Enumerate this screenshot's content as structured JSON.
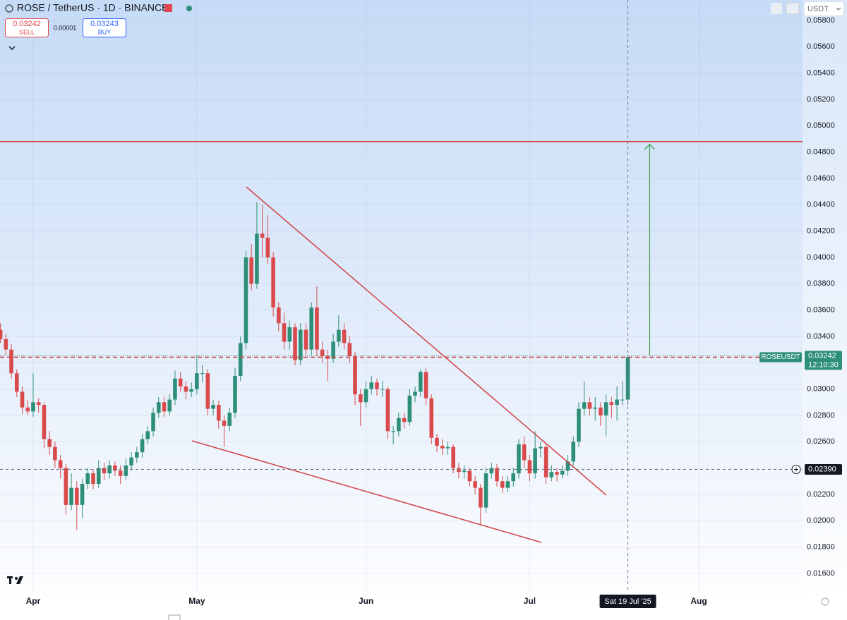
{
  "chart_data": {
    "type": "candlestick",
    "header": {
      "title": "ROSE / TetherUS · 1D · BINANCE",
      "sell_price": "0.03242",
      "sell_label": "SELL",
      "spread": "0.00001",
      "buy_price": "0.03243",
      "buy_label": "BUY",
      "currency": "USDT"
    },
    "up_color": "#2e8f78",
    "down_color": "#d94a4c",
    "ylim": [
      0.01455,
      0.05955
    ],
    "yticks": [
      {
        "value": 0.016,
        "label": "0.01600"
      },
      {
        "value": 0.018,
        "label": "0.01800"
      },
      {
        "value": 0.02,
        "label": "0.02000"
      },
      {
        "value": 0.022,
        "label": "0.02200"
      },
      {
        "value": 0.024,
        "label": "0.02400"
      },
      {
        "value": 0.026,
        "label": "0.02600"
      },
      {
        "value": 0.028,
        "label": "0.02800"
      },
      {
        "value": 0.03,
        "label": "0.03000"
      },
      {
        "value": 0.032,
        "label": "0.03200"
      },
      {
        "value": 0.034,
        "label": "0.03400"
      },
      {
        "value": 0.036,
        "label": "0.03600"
      },
      {
        "value": 0.038,
        "label": "0.03800"
      },
      {
        "value": 0.04,
        "label": "0.04000"
      },
      {
        "value": 0.042,
        "label": "0.04200"
      },
      {
        "value": 0.044,
        "label": "0.04400"
      },
      {
        "value": 0.046,
        "label": "0.04600"
      },
      {
        "value": 0.048,
        "label": "0.04800"
      },
      {
        "value": 0.05,
        "label": "0.05000"
      },
      {
        "value": 0.052,
        "label": "0.05200"
      },
      {
        "value": 0.054,
        "label": "0.05400"
      },
      {
        "value": 0.056,
        "label": "0.05600"
      },
      {
        "value": 0.058,
        "label": "0.05800"
      }
    ],
    "grid": true,
    "categories": [
      null,
      null,
      null,
      null,
      null,
      null,
      "Apr",
      null,
      null,
      null,
      null,
      null,
      null,
      null,
      null,
      null,
      null,
      null,
      null,
      null,
      null,
      null,
      null,
      null,
      null,
      null,
      null,
      null,
      null,
      null,
      null,
      null,
      null,
      null,
      null,
      null,
      "May",
      null,
      null,
      null,
      null,
      null,
      null,
      null,
      null,
      null,
      null,
      null,
      null,
      null,
      null,
      null,
      null,
      null,
      null,
      null,
      null,
      null,
      null,
      null,
      null,
      null,
      null,
      null,
      null,
      null,
      null,
      "Jun",
      null,
      null,
      null,
      null,
      null,
      null,
      null,
      null,
      null,
      null,
      null,
      null,
      null,
      null,
      null,
      null,
      null,
      null,
      null,
      null,
      null,
      null,
      null,
      null,
      null,
      null,
      null,
      null,
      null,
      "Jul",
      null,
      null,
      null,
      null,
      null,
      null,
      null,
      null,
      null,
      null,
      null,
      null,
      null,
      null,
      null,
      null,
      null,
      null,
      null,
      null,
      null,
      null,
      null,
      null,
      null,
      null,
      null,
      null,
      null,
      null,
      "Aug"
    ],
    "ohlc": [
      [
        0.0345,
        0.035,
        0.0335,
        0.0338
      ],
      [
        0.0338,
        0.0342,
        0.0326,
        0.033
      ],
      [
        0.033,
        0.0334,
        0.0308,
        0.0312
      ],
      [
        0.0312,
        0.0315,
        0.0294,
        0.0298
      ],
      [
        0.0298,
        0.0302,
        0.0281,
        0.0286
      ],
      [
        0.0286,
        0.0292,
        0.028,
        0.0283
      ],
      [
        0.0283,
        0.0312,
        0.0279,
        0.029
      ],
      [
        0.029,
        0.0293,
        0.0282,
        0.0288
      ],
      [
        0.0288,
        0.029,
        0.0255,
        0.0262
      ],
      [
        0.0262,
        0.0268,
        0.025,
        0.0256
      ],
      [
        0.0256,
        0.026,
        0.024,
        0.0246
      ],
      [
        0.0246,
        0.025,
        0.0232,
        0.024
      ],
      [
        0.024,
        0.0243,
        0.0205,
        0.0212
      ],
      [
        0.0212,
        0.0236,
        0.0208,
        0.0225
      ],
      [
        0.0225,
        0.023,
        0.0193,
        0.0212
      ],
      [
        0.0212,
        0.0232,
        0.0202,
        0.0228
      ],
      [
        0.0228,
        0.024,
        0.0224,
        0.0236
      ],
      [
        0.0236,
        0.0239,
        0.0224,
        0.0228
      ],
      [
        0.0228,
        0.0246,
        0.0225,
        0.024
      ],
      [
        0.024,
        0.0244,
        0.0231,
        0.0236
      ],
      [
        0.0236,
        0.0246,
        0.0232,
        0.0242
      ],
      [
        0.0242,
        0.0245,
        0.0234,
        0.0238
      ],
      [
        0.0238,
        0.0242,
        0.0228,
        0.0234
      ],
      [
        0.0234,
        0.0247,
        0.0231,
        0.0242
      ],
      [
        0.0242,
        0.0252,
        0.0238,
        0.0248
      ],
      [
        0.0248,
        0.0256,
        0.0244,
        0.0252
      ],
      [
        0.0252,
        0.0266,
        0.0248,
        0.0262
      ],
      [
        0.0262,
        0.0272,
        0.0258,
        0.0268
      ],
      [
        0.0268,
        0.0286,
        0.0264,
        0.0282
      ],
      [
        0.0282,
        0.0294,
        0.0278,
        0.029
      ],
      [
        0.029,
        0.0294,
        0.0279,
        0.0283
      ],
      [
        0.0283,
        0.0296,
        0.028,
        0.0292
      ],
      [
        0.0292,
        0.0314,
        0.0288,
        0.0308
      ],
      [
        0.0308,
        0.0313,
        0.0298,
        0.0302
      ],
      [
        0.0302,
        0.0306,
        0.0292,
        0.0298
      ],
      [
        0.0298,
        0.0305,
        0.0294,
        0.03
      ],
      [
        0.03,
        0.0326,
        0.0296,
        0.0312
      ],
      [
        0.0312,
        0.0318,
        0.0305,
        0.0312
      ],
      [
        0.0312,
        0.0315,
        0.028,
        0.0285
      ],
      [
        0.0285,
        0.0292,
        0.028,
        0.0288
      ],
      [
        0.0288,
        0.0291,
        0.027,
        0.0276
      ],
      [
        0.0276,
        0.028,
        0.0256,
        0.0272
      ],
      [
        0.0272,
        0.0286,
        0.0268,
        0.0282
      ],
      [
        0.0282,
        0.0316,
        0.0278,
        0.031
      ],
      [
        0.031,
        0.034,
        0.0306,
        0.0335
      ],
      [
        0.0335,
        0.0405,
        0.033,
        0.04
      ],
      [
        0.04,
        0.041,
        0.0375,
        0.038
      ],
      [
        0.038,
        0.0442,
        0.0376,
        0.0418
      ],
      [
        0.0418,
        0.044,
        0.04,
        0.0415
      ],
      [
        0.0415,
        0.0432,
        0.0395,
        0.04
      ],
      [
        0.04,
        0.0404,
        0.0355,
        0.0362
      ],
      [
        0.0362,
        0.0366,
        0.0344,
        0.035
      ],
      [
        0.035,
        0.0358,
        0.033,
        0.0336
      ],
      [
        0.0336,
        0.0352,
        0.033,
        0.0347
      ],
      [
        0.0347,
        0.035,
        0.0318,
        0.0322
      ],
      [
        0.0322,
        0.035,
        0.0318,
        0.0345
      ],
      [
        0.0345,
        0.035,
        0.0326,
        0.033
      ],
      [
        0.033,
        0.0366,
        0.0326,
        0.0362
      ],
      [
        0.0362,
        0.0378,
        0.0325,
        0.033
      ],
      [
        0.033,
        0.0336,
        0.032,
        0.0325
      ],
      [
        0.0325,
        0.033,
        0.0306,
        0.0323
      ],
      [
        0.0323,
        0.0342,
        0.032,
        0.0336
      ],
      [
        0.0336,
        0.0356,
        0.0332,
        0.0345
      ],
      [
        0.0345,
        0.035,
        0.033,
        0.0335
      ],
      [
        0.0335,
        0.034,
        0.032,
        0.0325
      ],
      [
        0.0325,
        0.0328,
        0.0288,
        0.0296
      ],
      [
        0.0296,
        0.03,
        0.0272,
        0.029
      ],
      [
        0.029,
        0.0306,
        0.0286,
        0.03
      ],
      [
        0.03,
        0.031,
        0.0296,
        0.0305
      ],
      [
        0.0305,
        0.0308,
        0.0295,
        0.03
      ],
      [
        0.03,
        0.0306,
        0.0294,
        0.03
      ],
      [
        0.03,
        0.0302,
        0.0262,
        0.0268
      ],
      [
        0.0268,
        0.0272,
        0.0258,
        0.0268
      ],
      [
        0.0268,
        0.0282,
        0.0264,
        0.0278
      ],
      [
        0.0278,
        0.0282,
        0.027,
        0.0275
      ],
      [
        0.0275,
        0.03,
        0.0272,
        0.0295
      ],
      [
        0.0295,
        0.0302,
        0.029,
        0.0298
      ],
      [
        0.0298,
        0.0315,
        0.0294,
        0.0313
      ],
      [
        0.0313,
        0.0316,
        0.0288,
        0.0293
      ],
      [
        0.0293,
        0.0296,
        0.0258,
        0.0263
      ],
      [
        0.0263,
        0.0266,
        0.0252,
        0.0257
      ],
      [
        0.0257,
        0.0262,
        0.025,
        0.0255
      ],
      [
        0.0255,
        0.026,
        0.025,
        0.0256
      ],
      [
        0.0256,
        0.0258,
        0.0236,
        0.024
      ],
      [
        0.024,
        0.0244,
        0.0232,
        0.0237
      ],
      [
        0.0237,
        0.0242,
        0.0232,
        0.0238
      ],
      [
        0.0238,
        0.024,
        0.0226,
        0.023
      ],
      [
        0.023,
        0.0234,
        0.022,
        0.0225
      ],
      [
        0.0225,
        0.0228,
        0.0197,
        0.021
      ],
      [
        0.021,
        0.024,
        0.0206,
        0.0236
      ],
      [
        0.0236,
        0.0244,
        0.0232,
        0.024
      ],
      [
        0.024,
        0.0243,
        0.0226,
        0.023
      ],
      [
        0.023,
        0.0234,
        0.0221,
        0.0225
      ],
      [
        0.0225,
        0.0234,
        0.0222,
        0.023
      ],
      [
        0.023,
        0.024,
        0.0226,
        0.0236
      ],
      [
        0.0236,
        0.0262,
        0.0232,
        0.0258
      ],
      [
        0.0258,
        0.0264,
        0.024,
        0.0246
      ],
      [
        0.0246,
        0.025,
        0.023,
        0.0236
      ],
      [
        0.0236,
        0.0268,
        0.0232,
        0.0255
      ],
      [
        0.0255,
        0.026,
        0.0248,
        0.0256
      ],
      [
        0.0256,
        0.0258,
        0.0228,
        0.0233
      ],
      [
        0.0233,
        0.0242,
        0.023,
        0.0237
      ],
      [
        0.0237,
        0.024,
        0.023,
        0.0235
      ],
      [
        0.0235,
        0.0242,
        0.0232,
        0.0238
      ],
      [
        0.0238,
        0.025,
        0.0234,
        0.0245
      ],
      [
        0.0245,
        0.0264,
        0.0242,
        0.026
      ],
      [
        0.026,
        0.029,
        0.0256,
        0.0285
      ],
      [
        0.0285,
        0.0306,
        0.028,
        0.029
      ],
      [
        0.029,
        0.0294,
        0.028,
        0.0285
      ],
      [
        0.0285,
        0.0294,
        0.0276,
        0.0286
      ],
      [
        0.0286,
        0.029,
        0.0272,
        0.028
      ],
      [
        0.028,
        0.0296,
        0.0264,
        0.029
      ],
      [
        0.029,
        0.0294,
        0.0278,
        0.0288
      ],
      [
        0.0288,
        0.0302,
        0.0276,
        0.0292
      ],
      [
        0.0292,
        0.0306,
        0.0288,
        0.0292
      ],
      [
        0.0292,
        0.0326,
        0.0288,
        0.03242
      ],
      null,
      null,
      null,
      null,
      null,
      null,
      null,
      null,
      null,
      null,
      null,
      null,
      null
    ],
    "last_price": {
      "symbol": "ROSEUSDT",
      "value": 0.03242,
      "countdown": "12:10:30"
    },
    "target_level": 0.0488,
    "crosshair": {
      "date_label": "Sat 19 Jul '25",
      "price": {
        "value": 0.0239,
        "label": "0.02390"
      }
    }
  }
}
